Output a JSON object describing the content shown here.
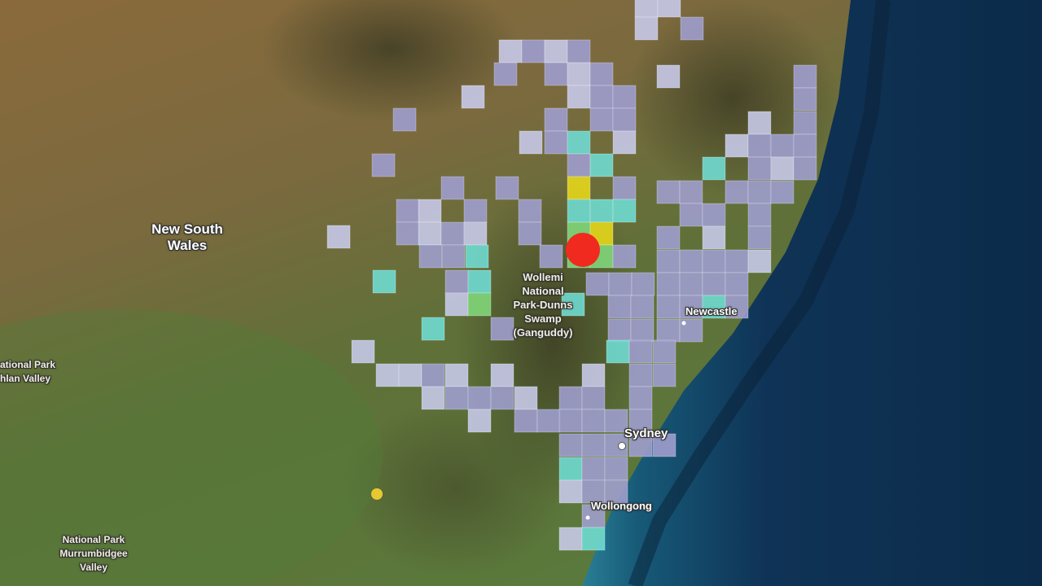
{
  "map": {
    "region_label": [
      "New South",
      "Wales"
    ],
    "place_labels": {
      "wollemi": [
        "Wollemi",
        "National",
        "Park-Dunns",
        "Swamp",
        "(Ganguddy)"
      ],
      "newcastle": "Newcastle",
      "sydney": "Sydney",
      "wollongong": "Wollongong",
      "lachlan_valley": [
        "ational Park",
        "hlan Valley"
      ],
      "murrumbidgee": [
        "National Park",
        "Murrumbidgee",
        "Valley"
      ]
    },
    "cell_colors": {
      "low_light": "#c6c9e8",
      "low": "#9f9dcd",
      "medium": "#6fdad0",
      "high": "#80d67a",
      "very_high": "#e4d61c"
    },
    "epicentre_color": "#f02a1e",
    "minor_event_color": "#e8c832",
    "land_color": "#6b6a3a",
    "ocean_color": "#0f3356"
  }
}
